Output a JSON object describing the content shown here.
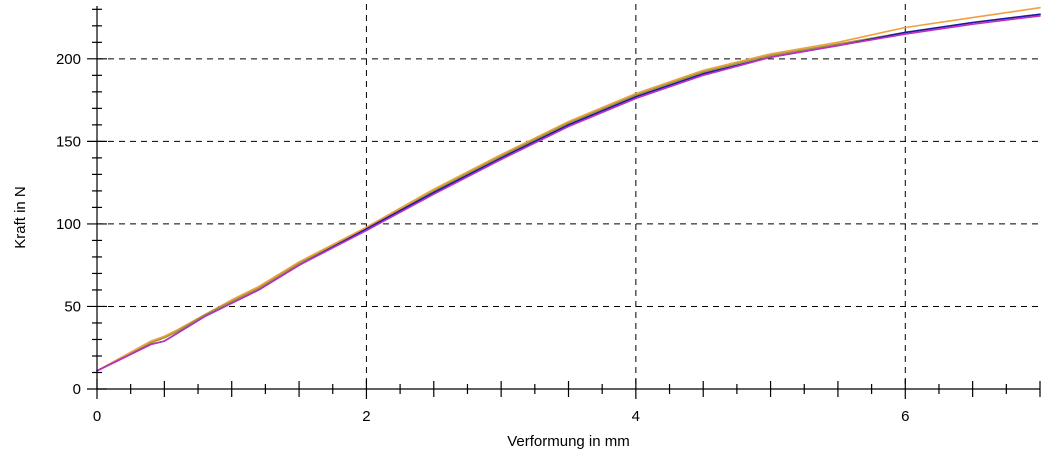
{
  "chart_data": {
    "type": "line",
    "title": "",
    "xlabel": "Verformung in mm",
    "ylabel": "Kraft in N",
    "xlim": [
      0,
      7
    ],
    "ylim": [
      0,
      232
    ],
    "xticks": [
      0,
      2,
      4,
      6
    ],
    "yticks": [
      0,
      50,
      100,
      150,
      200
    ],
    "grid": true,
    "legend": "none",
    "series": [
      {
        "color": "#f0a040",
        "x": [
          0,
          0.2,
          0.4,
          0.5,
          0.6,
          0.8,
          1.0,
          1.2,
          1.5,
          2.0,
          2.5,
          3.0,
          3.5,
          4.0,
          4.5,
          5.0,
          5.5,
          6.0,
          6.5,
          7.0
        ],
        "y": [
          11,
          20,
          29,
          32,
          36,
          45,
          54,
          62,
          77,
          98,
          121,
          142,
          162,
          179,
          193,
          203,
          210,
          219,
          225,
          231
        ]
      },
      {
        "color": "#9a9a30",
        "x": [
          0,
          0.2,
          0.4,
          0.5,
          0.6,
          0.8,
          1.0,
          1.2,
          1.5,
          2.0,
          2.5,
          3.0,
          3.5,
          4.0,
          4.5,
          5.0,
          5.5,
          6.0,
          6.5,
          7.0
        ],
        "y": [
          11,
          19,
          28,
          31,
          35,
          45,
          53,
          61,
          76,
          97,
          120,
          141,
          161,
          178,
          192,
          202,
          209,
          216,
          222,
          227
        ]
      },
      {
        "color": "#1a1aaa",
        "x": [
          0,
          0.2,
          0.4,
          0.5,
          0.6,
          0.8,
          1.0,
          1.2,
          1.5,
          2.0,
          2.5,
          3.0,
          3.5,
          4.0,
          4.5,
          5.0,
          5.5,
          6.0,
          6.5,
          7.0
        ],
        "y": [
          11,
          19,
          27,
          29,
          34,
          44,
          52,
          60,
          75,
          97,
          119,
          140,
          160,
          177,
          191,
          201,
          208,
          216,
          222,
          227
        ]
      },
      {
        "color": "#c030c0",
        "x": [
          0,
          0.2,
          0.4,
          0.5,
          0.6,
          0.8,
          1.0,
          1.2,
          1.5,
          2.0,
          2.5,
          3.0,
          3.5,
          4.0,
          4.5,
          5.0,
          5.5,
          6.0,
          6.5,
          7.0
        ],
        "y": [
          11,
          19,
          27,
          29,
          34,
          44,
          52,
          60,
          75,
          96,
          118,
          139,
          159,
          176,
          190,
          201,
          208,
          215,
          221,
          226
        ]
      }
    ]
  }
}
